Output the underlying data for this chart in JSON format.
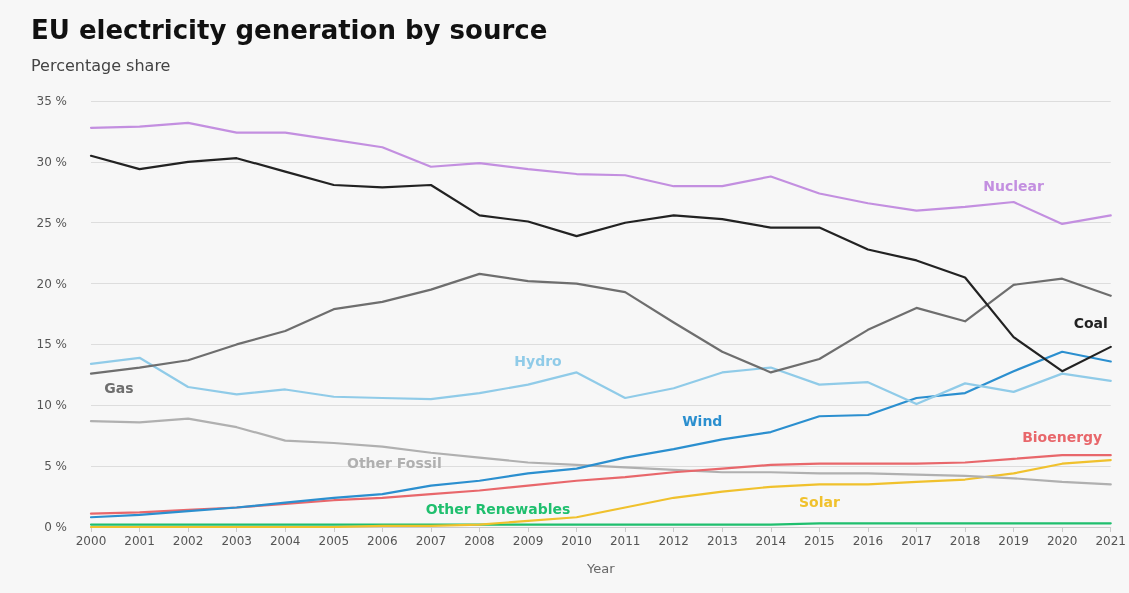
{
  "chart_data": {
    "type": "line",
    "title": "EU electricity generation by source",
    "subtitle": "Percentage share",
    "xlabel": "Year",
    "categories": [
      "2000",
      "2001",
      "2002",
      "2003",
      "2004",
      "2005",
      "2006",
      "2007",
      "2008",
      "2009",
      "2010",
      "2011",
      "2012",
      "2013",
      "2014",
      "2015",
      "2016",
      "2017",
      "2018",
      "2019",
      "2020",
      "2021"
    ],
    "ylim": [
      0,
      35
    ],
    "yticks": [
      {
        "value": 0,
        "label": "0 %"
      },
      {
        "value": 5,
        "label": "5 %"
      },
      {
        "value": 10,
        "label": "10 %"
      },
      {
        "value": 15,
        "label": "15 %"
      },
      {
        "value": 20,
        "label": "20 %"
      },
      {
        "value": 25,
        "label": "25 %"
      },
      {
        "value": 30,
        "label": "30 %"
      },
      {
        "value": 35,
        "label": "35 %"
      }
    ],
    "grid": "y",
    "legend": false,
    "marker": "none",
    "line_style": "solid",
    "series": [
      {
        "name": "Nuclear",
        "color": "#c38fe0",
        "values": [
          32.8,
          32.9,
          33.2,
          32.4,
          32.4,
          31.8,
          31.2,
          29.6,
          29.9,
          29.4,
          29.0,
          28.9,
          28.0,
          28.0,
          28.8,
          27.4,
          26.6,
          26.0,
          26.3,
          26.7,
          24.9,
          25.6
        ]
      },
      {
        "name": "Coal",
        "color": "#222222",
        "values": [
          30.5,
          29.4,
          30.0,
          30.3,
          29.2,
          28.1,
          27.9,
          28.1,
          25.6,
          25.1,
          23.9,
          25.0,
          25.6,
          25.3,
          24.6,
          24.6,
          22.8,
          21.9,
          20.5,
          15.6,
          12.8,
          14.8
        ]
      },
      {
        "name": "Gas",
        "color": "#6e6e6e",
        "values": [
          12.6,
          13.1,
          13.7,
          15.0,
          16.1,
          17.9,
          18.5,
          19.5,
          20.8,
          20.2,
          20.0,
          19.3,
          16.8,
          14.4,
          12.7,
          13.8,
          16.2,
          18.0,
          16.9,
          19.9,
          20.4,
          19.0
        ]
      },
      {
        "name": "Hydro",
        "color": "#90cbe8",
        "values": [
          13.4,
          13.9,
          11.5,
          10.9,
          11.3,
          10.7,
          10.6,
          10.5,
          11.0,
          11.7,
          12.7,
          10.6,
          11.4,
          12.7,
          13.1,
          11.7,
          11.9,
          10.1,
          11.8,
          11.1,
          12.6,
          12.0
        ]
      },
      {
        "name": "Wind",
        "color": "#2b8fcf",
        "values": [
          0.8,
          1.0,
          1.3,
          1.6,
          2.0,
          2.4,
          2.7,
          3.4,
          3.8,
          4.4,
          4.8,
          5.7,
          6.4,
          7.2,
          7.8,
          9.1,
          9.2,
          10.6,
          11.0,
          12.8,
          14.4,
          13.6
        ]
      },
      {
        "name": "Bioenergy",
        "color": "#e8676b",
        "values": [
          1.1,
          1.2,
          1.4,
          1.6,
          1.9,
          2.2,
          2.4,
          2.7,
          3.0,
          3.4,
          3.8,
          4.1,
          4.5,
          4.8,
          5.1,
          5.2,
          5.2,
          5.2,
          5.3,
          5.6,
          5.9,
          5.9
        ]
      },
      {
        "name": "Other Fossil",
        "color": "#b0b0b0",
        "values": [
          8.7,
          8.6,
          8.9,
          8.2,
          7.1,
          6.9,
          6.6,
          6.1,
          5.7,
          5.3,
          5.1,
          4.9,
          4.7,
          4.5,
          4.5,
          4.4,
          4.4,
          4.3,
          4.2,
          4.0,
          3.7,
          3.5
        ]
      },
      {
        "name": "Solar",
        "color": "#f0c12d",
        "values": [
          0,
          0,
          0,
          0,
          0,
          0,
          0.1,
          0.1,
          0.2,
          0.5,
          0.8,
          1.6,
          2.4,
          2.9,
          3.3,
          3.5,
          3.5,
          3.7,
          3.9,
          4.4,
          5.2,
          5.5
        ]
      },
      {
        "name": "Other Renewables",
        "color": "#1fbf6e",
        "values": [
          0.2,
          0.2,
          0.2,
          0.2,
          0.2,
          0.2,
          0.2,
          0.2,
          0.2,
          0.2,
          0.2,
          0.2,
          0.2,
          0.2,
          0.2,
          0.3,
          0.3,
          0.3,
          0.3,
          0.3,
          0.3,
          0.3
        ]
      }
    ]
  }
}
